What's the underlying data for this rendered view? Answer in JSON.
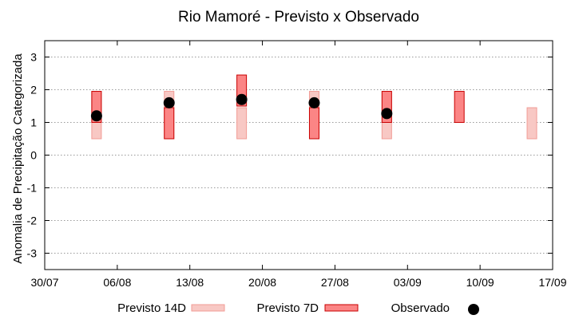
{
  "chart_data": {
    "type": "bar",
    "title": "Rio Mamoré - Previsto x Observado",
    "xlabel": "",
    "ylabel": "Anomalia de Precipitação Categorizada",
    "x_ticks": [
      "30/07",
      "06/08",
      "13/08",
      "20/08",
      "27/08",
      "03/09",
      "10/09",
      "17/09"
    ],
    "xlim_days": [
      0,
      49
    ],
    "ylim": [
      -3.5,
      3.5
    ],
    "y_ticks": [
      3,
      2,
      1,
      0,
      -1,
      -2,
      -3
    ],
    "grid": "horizontal-dotted",
    "legend": "bottom",
    "series": [
      {
        "name": "Previsto 14D",
        "style": "range-bar",
        "color": "#f8c8c4",
        "stroke": "#f19b95",
        "points": [
          {
            "day": 5,
            "low": 0.5,
            "high": 1.95
          },
          {
            "day": 12,
            "low": 0.5,
            "high": 1.95
          },
          {
            "day": 19,
            "low": 0.5,
            "high": 1.45
          },
          {
            "day": 26,
            "low": 0.5,
            "high": 1.95
          },
          {
            "day": 33,
            "low": 0.5,
            "high": 1.95
          },
          {
            "day": 47,
            "low": 0.5,
            "high": 1.45
          }
        ]
      },
      {
        "name": "Previsto 7D",
        "style": "range-bar",
        "color": "#fb8585",
        "stroke": "#c80000",
        "points": [
          {
            "day": 5,
            "low": 1.0,
            "high": 1.95
          },
          {
            "day": 12,
            "low": 0.5,
            "high": 1.45
          },
          {
            "day": 19,
            "low": 1.5,
            "high": 2.45
          },
          {
            "day": 26,
            "low": 0.5,
            "high": 1.45
          },
          {
            "day": 33,
            "low": 1.0,
            "high": 1.95
          },
          {
            "day": 40,
            "low": 1.0,
            "high": 1.95
          }
        ]
      },
      {
        "name": "Observado",
        "style": "point",
        "color": "#000000",
        "points": [
          {
            "day": 5,
            "value": 1.2
          },
          {
            "day": 12,
            "value": 1.6
          },
          {
            "day": 19,
            "value": 1.7
          },
          {
            "day": 26,
            "value": 1.6
          },
          {
            "day": 33,
            "value": 1.27
          }
        ]
      }
    ]
  }
}
